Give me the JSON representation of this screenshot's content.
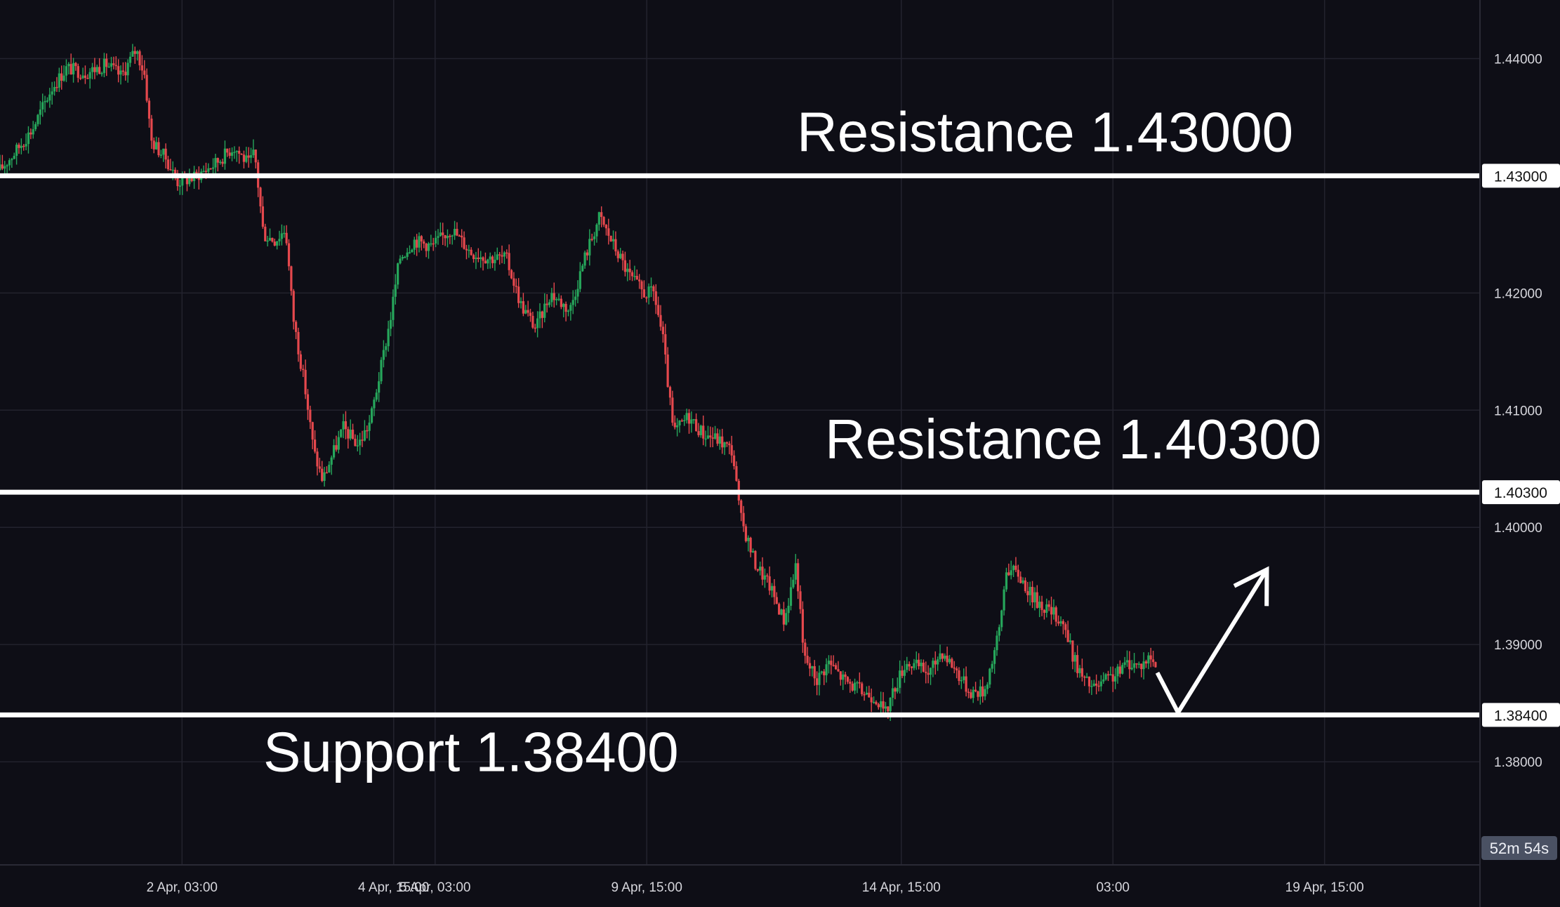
{
  "chart_data": {
    "type": "candlestick",
    "title": "",
    "ylim": [
      1.3712,
      1.445
    ],
    "xlim": [
      0,
      1000
    ],
    "grid": true,
    "y_ticks": [
      "1.38000",
      "1.39000",
      "1.40000",
      "1.41000",
      "1.42000",
      "1.44000"
    ],
    "x_ticks": [
      {
        "label": "2 Apr, 03:00",
        "x": 123
      },
      {
        "label": "4 Apr, 15:00",
        "x": 266
      },
      {
        "label": "5 Apr, 03:00",
        "x": 294
      },
      {
        "label": "9 Apr, 15:00",
        "x": 437
      },
      {
        "label": "14 Apr, 15:00",
        "x": 609
      },
      {
        "label": "03:00",
        "x": 752
      },
      {
        "label": "19 Apr, 15:00",
        "x": 895
      }
    ],
    "levels": [
      {
        "label": "1.43000",
        "value": 1.43,
        "annotation": "Resistance 1.43000"
      },
      {
        "label": "1.40300",
        "value": 1.403,
        "annotation": "Resistance 1.40300"
      },
      {
        "label": "1.38400",
        "value": 1.384,
        "annotation": "Support 1.38400"
      }
    ],
    "countdown": "52m 54s",
    "projection": [
      [
        782,
        1.3876
      ],
      [
        796,
        1.3842
      ],
      [
        856,
        1.3964
      ]
    ],
    "price_path": [
      [
        0,
        1.4305
      ],
      [
        10,
        1.432
      ],
      [
        22,
        1.434
      ],
      [
        35,
        1.4375
      ],
      [
        45,
        1.4392
      ],
      [
        58,
        1.4388
      ],
      [
        72,
        1.4395
      ],
      [
        82,
        1.4385
      ],
      [
        92,
        1.4408
      ],
      [
        98,
        1.4385
      ],
      [
        102,
        1.433
      ],
      [
        112,
        1.4315
      ],
      [
        120,
        1.4295
      ],
      [
        130,
        1.4298
      ],
      [
        145,
        1.431
      ],
      [
        158,
        1.4325
      ],
      [
        168,
        1.431
      ],
      [
        172,
        1.432
      ],
      [
        178,
        1.425
      ],
      [
        186,
        1.4245
      ],
      [
        193,
        1.4255
      ],
      [
        198,
        1.418
      ],
      [
        206,
        1.412
      ],
      [
        212,
        1.4065
      ],
      [
        218,
        1.404
      ],
      [
        224,
        1.406
      ],
      [
        232,
        1.4085
      ],
      [
        242,
        1.407
      ],
      [
        250,
        1.409
      ],
      [
        258,
        1.414
      ],
      [
        264,
        1.418
      ],
      [
        270,
        1.423
      ],
      [
        280,
        1.4245
      ],
      [
        292,
        1.424
      ],
      [
        305,
        1.4255
      ],
      [
        318,
        1.4235
      ],
      [
        330,
        1.423
      ],
      [
        342,
        1.423
      ],
      [
        352,
        1.419
      ],
      [
        362,
        1.417
      ],
      [
        372,
        1.42
      ],
      [
        385,
        1.4185
      ],
      [
        395,
        1.423
      ],
      [
        405,
        1.4265
      ],
      [
        415,
        1.424
      ],
      [
        425,
        1.4215
      ],
      [
        435,
        1.42
      ],
      [
        442,
        1.42
      ],
      [
        448,
        1.416
      ],
      [
        455,
        1.408
      ],
      [
        465,
        1.4095
      ],
      [
        475,
        1.408
      ],
      [
        485,
        1.4075
      ],
      [
        495,
        1.4065
      ],
      [
        500,
        1.401
      ],
      [
        510,
        1.397
      ],
      [
        520,
        1.395
      ],
      [
        530,
        1.392
      ],
      [
        538,
        1.397
      ],
      [
        543,
        1.389
      ],
      [
        552,
        1.387
      ],
      [
        560,
        1.3885
      ],
      [
        570,
        1.387
      ],
      [
        582,
        1.386
      ],
      [
        592,
        1.3855
      ],
      [
        598,
        1.384
      ],
      [
        604,
        1.3862
      ],
      [
        612,
        1.3885
      ],
      [
        622,
        1.388
      ],
      [
        628,
        1.3875
      ],
      [
        636,
        1.3895
      ],
      [
        645,
        1.388
      ],
      [
        655,
        1.386
      ],
      [
        665,
        1.386
      ],
      [
        675,
        1.391
      ],
      [
        680,
        1.3965
      ],
      [
        688,
        1.396
      ],
      [
        698,
        1.394
      ],
      [
        708,
        1.393
      ],
      [
        718,
        1.392
      ],
      [
        725,
        1.389
      ],
      [
        732,
        1.387
      ],
      [
        740,
        1.3862
      ],
      [
        748,
        1.387
      ],
      [
        755,
        1.3875
      ],
      [
        762,
        1.3885
      ],
      [
        770,
        1.3882
      ],
      [
        778,
        1.389
      ],
      [
        782,
        1.3876
      ]
    ]
  }
}
